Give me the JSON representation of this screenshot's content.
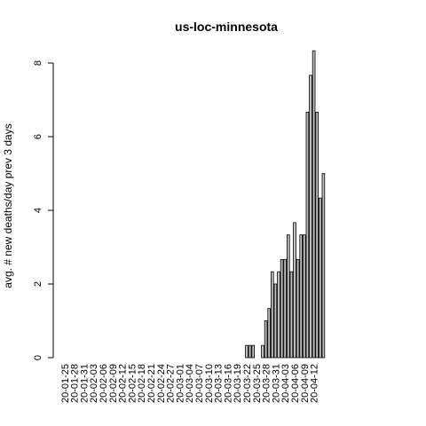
{
  "chart_data": {
    "type": "bar",
    "title": "us-loc-minnesota",
    "xlabel": "",
    "ylabel": "avg. # new deaths/day prev  3  days",
    "ylim": [
      0,
      8.4
    ],
    "yticks": [
      0,
      2,
      4,
      6,
      8
    ],
    "grid": false,
    "start_date": "20-01-25",
    "x_tick_labels": [
      "20-01-25",
      "20-01-28",
      "20-01-31",
      "20-02-03",
      "20-02-06",
      "20-02-09",
      "20-02-12",
      "20-02-15",
      "20-02-18",
      "20-02-21",
      "20-02-24",
      "20-02-27",
      "20-03-01",
      "20-03-04",
      "20-03-07",
      "20-03-10",
      "20-03-13",
      "20-03-16",
      "20-03-19",
      "20-03-22",
      "20-03-25",
      "20-03-28",
      "20-03-31",
      "20-04-03",
      "20-04-06",
      "20-04-09",
      "20-04-12"
    ],
    "values": [
      0,
      0,
      0,
      0,
      0,
      0,
      0,
      0,
      0,
      0,
      0,
      0,
      0,
      0,
      0,
      0,
      0,
      0,
      0,
      0,
      0,
      0,
      0,
      0,
      0,
      0,
      0,
      0,
      0,
      0,
      0,
      0,
      0,
      0,
      0,
      0,
      0,
      0,
      0,
      0,
      0,
      0,
      0,
      0,
      0,
      0,
      0,
      0,
      0,
      0,
      0,
      0,
      0,
      0,
      0,
      0,
      0,
      0.333,
      0.333,
      0.333,
      0,
      0,
      0.333,
      1,
      1.333,
      2.333,
      2,
      2.333,
      2.667,
      2.667,
      3.333,
      2.333,
      3.667,
      2.667,
      3.333,
      3.333,
      6.667,
      7.667,
      8.333,
      6.667,
      4.333,
      5
    ]
  }
}
